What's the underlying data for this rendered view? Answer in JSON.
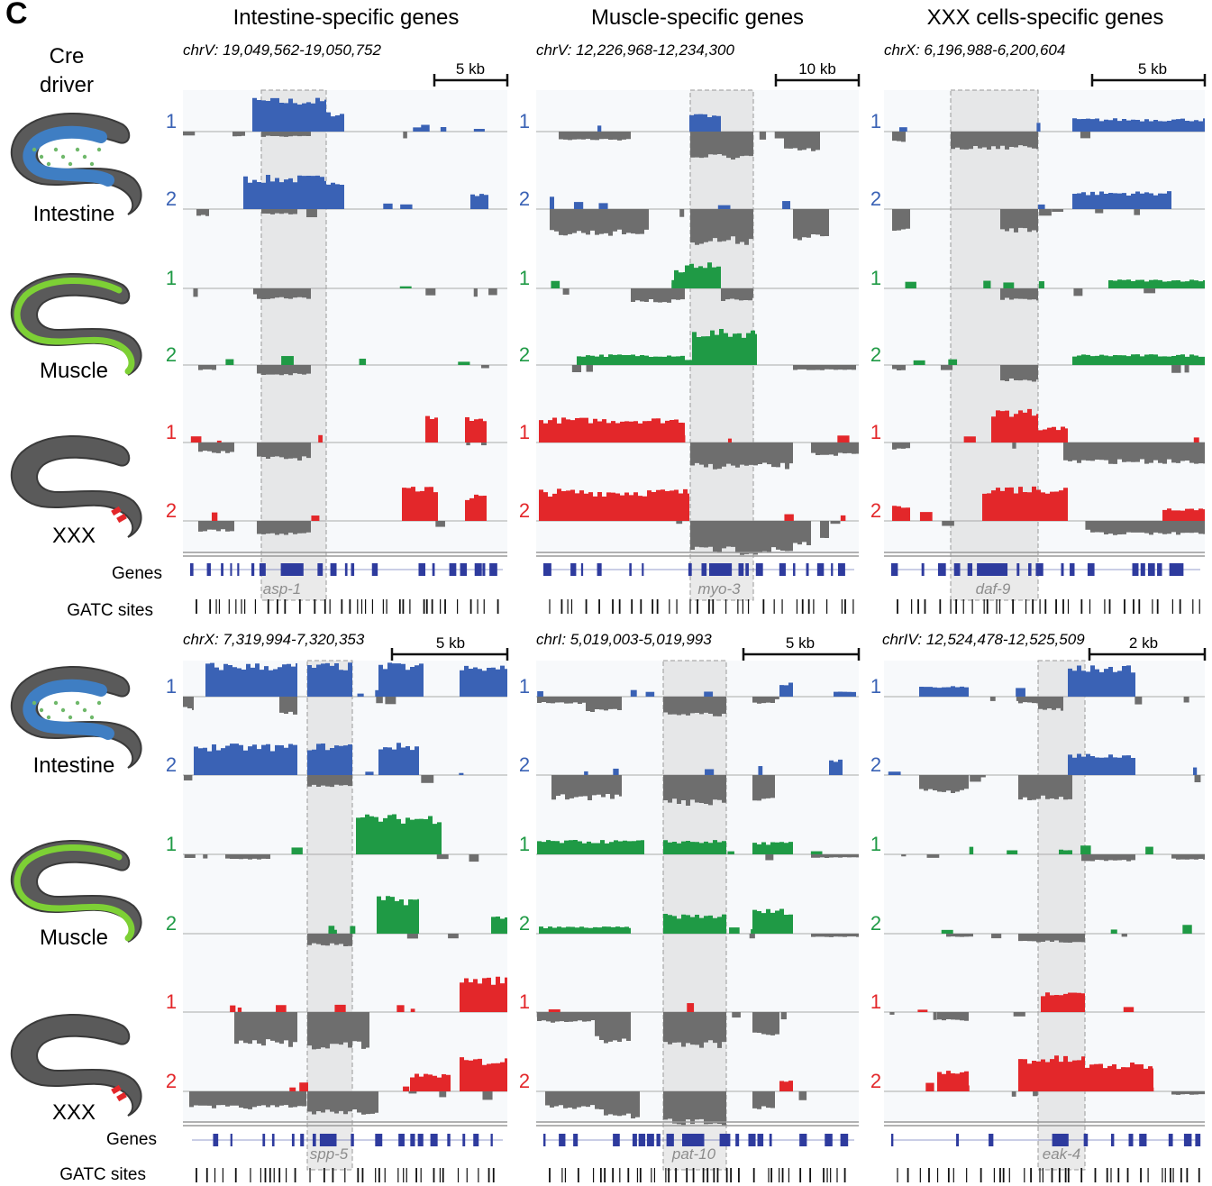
{
  "figure": {
    "panel_letter": "C",
    "column_titles": [
      "Intestine-specific genes",
      "Muscle-specific genes",
      "XXX cells-specific genes"
    ],
    "cre_driver_label": [
      "Cre",
      "driver"
    ],
    "driver_labels": [
      "Intestine",
      "Muscle",
      "XXX"
    ],
    "replicate_labels": [
      "1",
      "2"
    ],
    "genes_label": "Genes",
    "gatc_label": "GATC sites",
    "scale_top": "5",
    "scale_bottom": "-2",
    "colors": {
      "intestine": "#3a62b5",
      "muscle": "#1f9a45",
      "xxx": "#e3272a",
      "negative": "#6e6e6e",
      "track_bg": "#f7f9fb",
      "highlight": "#d0d0d0",
      "gene": "#2e3b9e"
    },
    "worm_icons": [
      "intestine-worm-icon",
      "muscle-worm-icon",
      "xxx-worm-icon"
    ],
    "panels": [
      {
        "coords": "chrV: 19,049,562-19,050,752",
        "scale": "5 kb",
        "gene": "asp-1"
      },
      {
        "coords": "chrV: 12,226,968-12,234,300",
        "scale": "10 kb",
        "gene": "myo-3"
      },
      {
        "coords": "chrX: 6,196,988-6,200,604",
        "scale": "5 kb",
        "gene": "daf-9"
      },
      {
        "coords": "chrX: 7,319,994-7,320,353",
        "scale": "5 kb",
        "gene": "spp-5"
      },
      {
        "coords": "chrI: 5,019,003-5,019,993",
        "scale": "5 kb",
        "gene": "pat-10"
      },
      {
        "coords": "chrIV: 12,524,478-12,525,509",
        "scale": "2 kb",
        "gene": "eak-4"
      }
    ]
  }
}
